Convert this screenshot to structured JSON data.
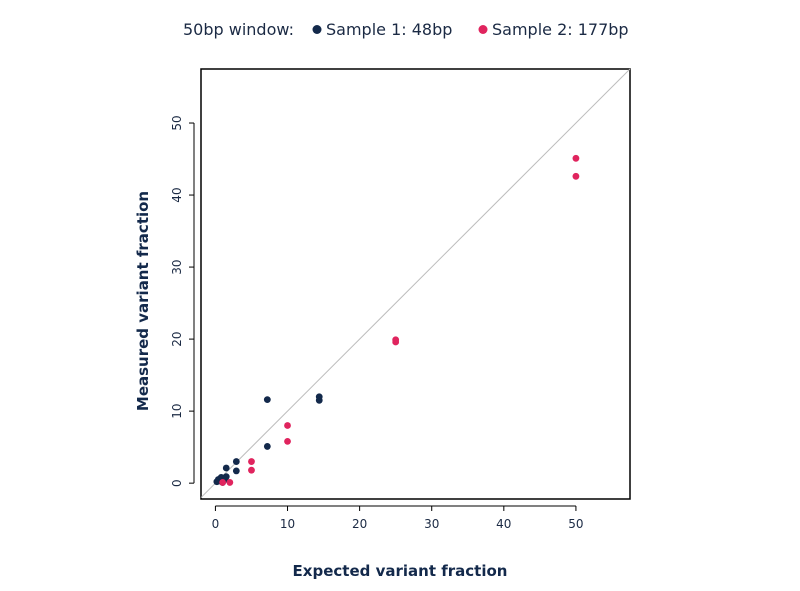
{
  "chart_data": {
    "type": "scatter",
    "legend": {
      "title": "50bp window:",
      "placement": "top"
    },
    "xlabel": "Expected variant fraction",
    "ylabel": "Measured variant fraction",
    "xlim": [
      -2,
      57.5
    ],
    "ylim": [
      -2.2,
      57.5
    ],
    "xticks": [
      0,
      10,
      20,
      30,
      40,
      50
    ],
    "yticks": [
      0,
      10,
      20,
      30,
      40,
      50
    ],
    "reference_line": "y = x",
    "grid": false,
    "series": [
      {
        "name": "Sample 1: 48bp",
        "color": "#13294b",
        "points": [
          [
            0.2,
            0.2
          ],
          [
            0.4,
            0.5
          ],
          [
            0.6,
            0.3
          ],
          [
            0.8,
            0.8
          ],
          [
            1.0,
            0.1
          ],
          [
            1.3,
            0.5
          ],
          [
            1.5,
            0.9
          ],
          [
            1.5,
            2.1
          ],
          [
            2.9,
            1.7
          ],
          [
            2.9,
            3.0
          ],
          [
            7.2,
            5.1
          ],
          [
            7.2,
            11.6
          ],
          [
            14.4,
            11.5
          ],
          [
            14.4,
            12.0
          ]
        ]
      },
      {
        "name": "Sample 2: 177bp",
        "color": "#e0245e",
        "points": [
          [
            1.0,
            0.1
          ],
          [
            2.0,
            0.1
          ],
          [
            5.0,
            3.0
          ],
          [
            5.0,
            1.8
          ],
          [
            10.0,
            8.0
          ],
          [
            10.0,
            5.8
          ],
          [
            25.0,
            19.6
          ],
          [
            25.0,
            19.9
          ],
          [
            50.0,
            42.6
          ],
          [
            50.0,
            45.1
          ]
        ]
      }
    ]
  }
}
